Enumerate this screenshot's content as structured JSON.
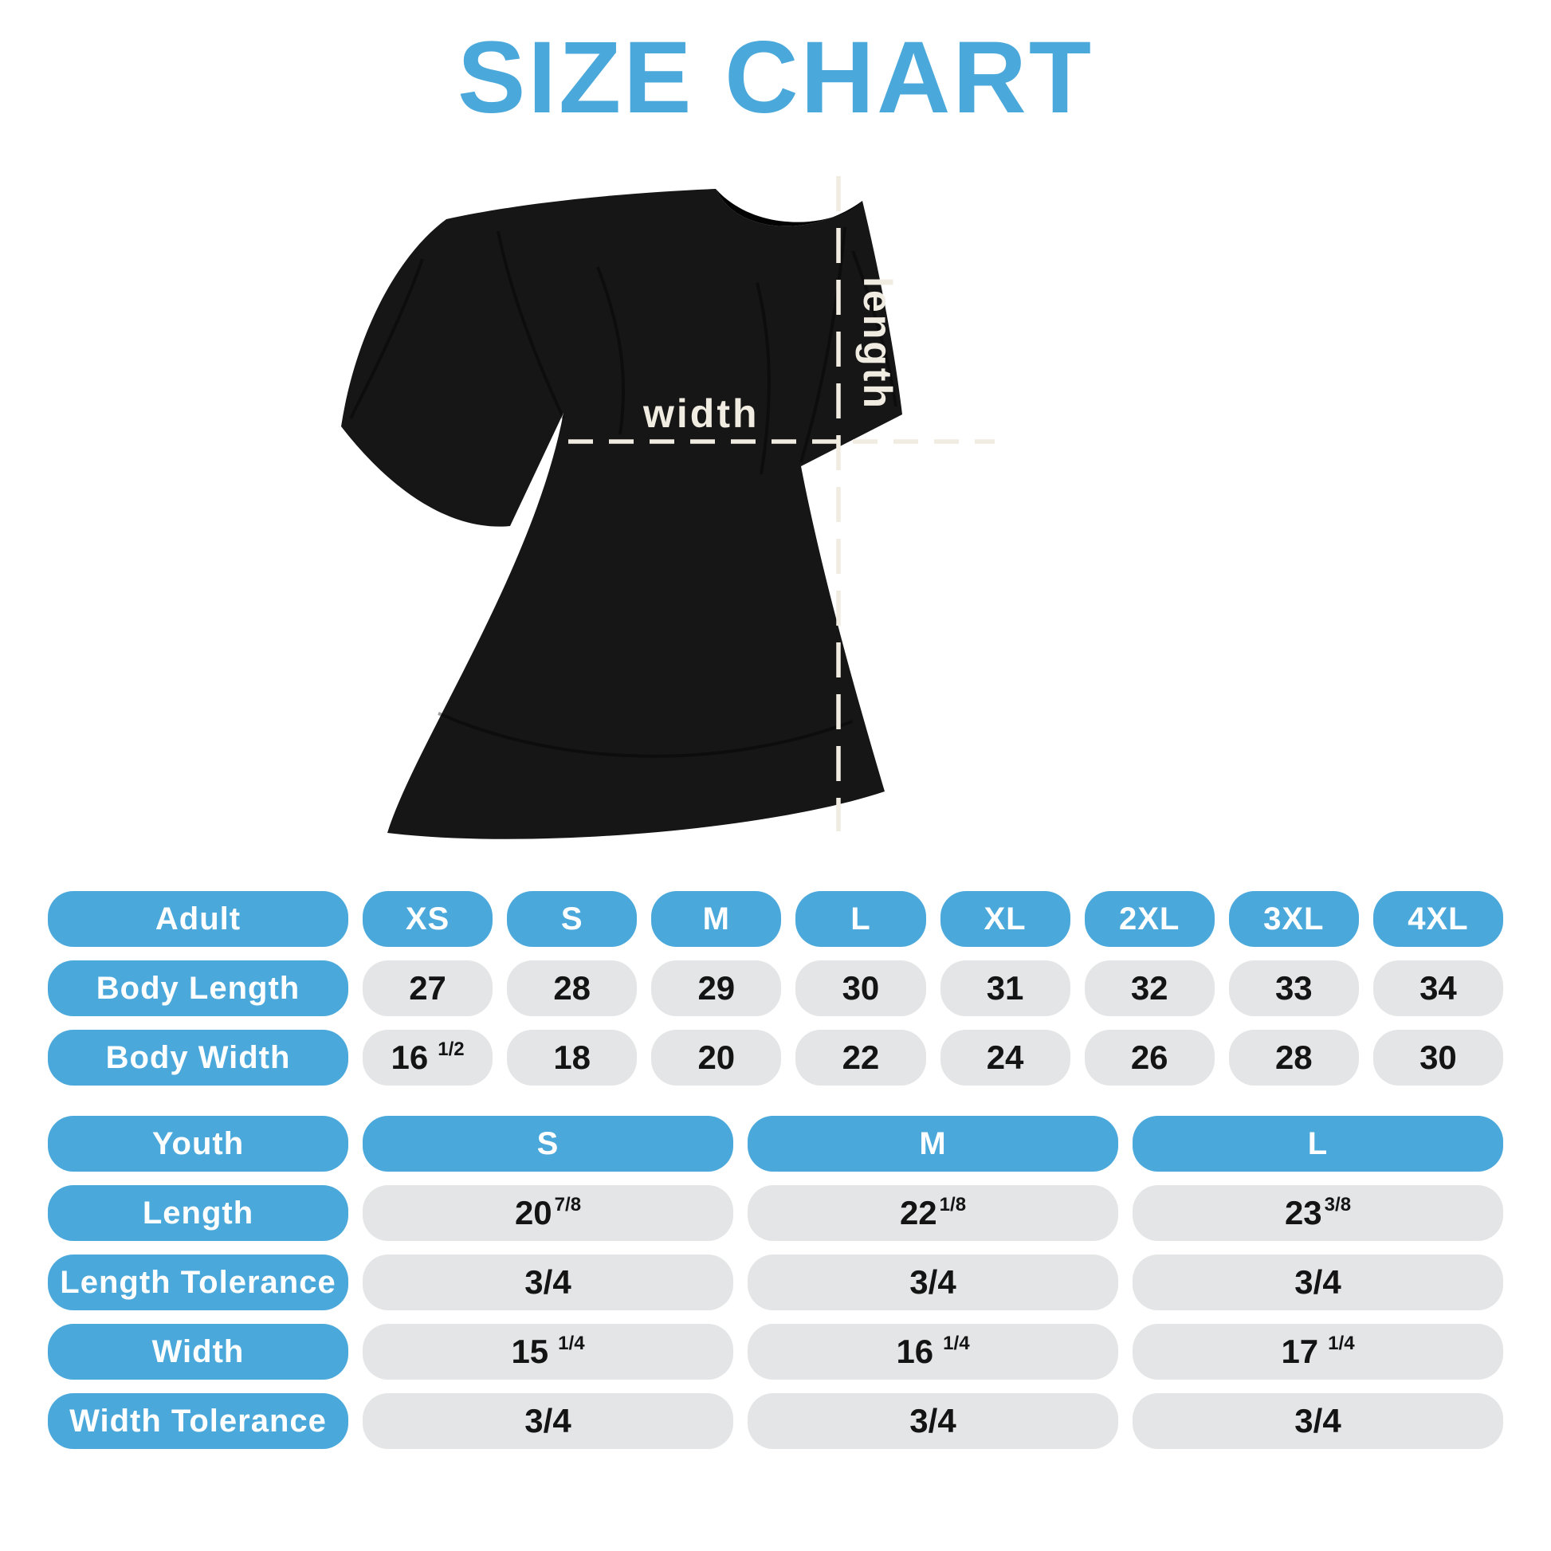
{
  "page": {
    "title": "SIZE CHART"
  },
  "diagram": {
    "width_label": "width",
    "length_label": "length"
  },
  "adult_table": {
    "header": [
      "Adult",
      "XS",
      "S",
      "M",
      "L",
      "XL",
      "2XL",
      "3XL",
      "4XL"
    ],
    "rows": [
      {
        "label": "Body Length",
        "values": [
          {
            "v": "27"
          },
          {
            "v": "28"
          },
          {
            "v": "29"
          },
          {
            "v": "30"
          },
          {
            "v": "31"
          },
          {
            "v": "32"
          },
          {
            "v": "33"
          },
          {
            "v": "34"
          }
        ]
      },
      {
        "label": "Body Width",
        "values": [
          {
            "v": "16",
            "f": "1/2",
            "sp": true
          },
          {
            "v": "18"
          },
          {
            "v": "20"
          },
          {
            "v": "22"
          },
          {
            "v": "24"
          },
          {
            "v": "26"
          },
          {
            "v": "28"
          },
          {
            "v": "30"
          }
        ]
      }
    ]
  },
  "youth_table": {
    "header": [
      "Youth",
      "S",
      "M",
      "L"
    ],
    "rows": [
      {
        "label": "Length",
        "values": [
          {
            "v": "20",
            "f": "7/8"
          },
          {
            "v": "22",
            "f": "1/8"
          },
          {
            "v": "23",
            "f": "3/8"
          }
        ]
      },
      {
        "label": "Length Tolerance",
        "values": [
          {
            "v": "3/4"
          },
          {
            "v": "3/4"
          },
          {
            "v": "3/4"
          }
        ]
      },
      {
        "label": "Width",
        "values": [
          {
            "v": "15",
            "f": "1/4",
            "sp": true
          },
          {
            "v": "16",
            "f": "1/4",
            "sp": true
          },
          {
            "v": "17",
            "f": "1/4",
            "sp": true
          }
        ]
      },
      {
        "label": "Width Tolerance",
        "values": [
          {
            "v": "3/4"
          },
          {
            "v": "3/4"
          },
          {
            "v": "3/4"
          }
        ]
      }
    ]
  },
  "colors": {
    "accent_blue": "#4aa8db",
    "value_pill_gray": "#e4e5e6",
    "dash_cream": "#f1ece1",
    "shirt_black": "#161616",
    "value_text": "#141414",
    "background": "#ffffff"
  }
}
